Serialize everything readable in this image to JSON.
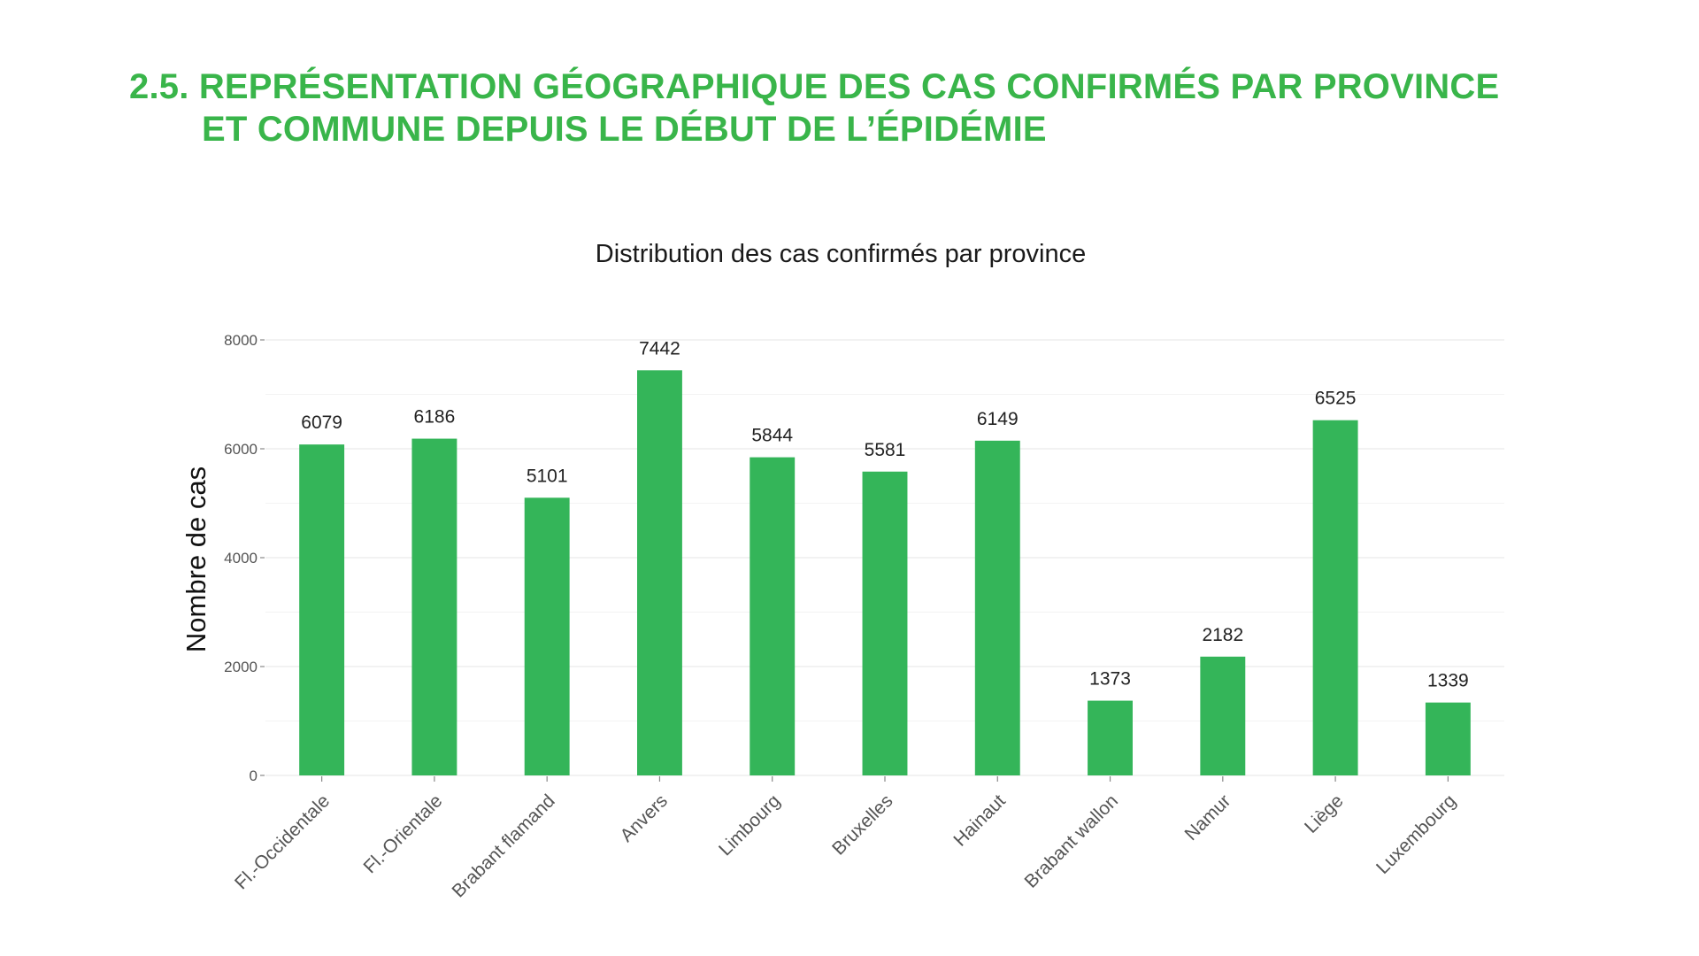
{
  "heading": {
    "line1": "2.5. REPRÉSENTATION GÉOGRAPHIQUE DES CAS CONFIRMÉS PAR PROVINCE",
    "line2": "ET COMMUNE DEPUIS LE DÉBUT DE L’ÉPIDÉMIE"
  },
  "colors": {
    "accent": "#39b54a",
    "bar": "#34b559"
  },
  "chart_data": {
    "type": "bar",
    "title": "Distribution des cas confirmés par province",
    "xlabel": "",
    "ylabel": "Nombre de cas",
    "categories": [
      "Fl.-Occidentale",
      "Fl.-Orientale",
      "Brabant flamand",
      "Anvers",
      "Limbourg",
      "Bruxelles",
      "Hainaut",
      "Brabant wallon",
      "Namur",
      "Liège",
      "Luxembourg"
    ],
    "values": [
      6079,
      6186,
      5101,
      7442,
      5844,
      5581,
      6149,
      1373,
      2182,
      6525,
      1339
    ],
    "ylim": [
      0,
      8000
    ],
    "yticks": [
      0,
      2000,
      4000,
      6000,
      8000
    ],
    "grid": true,
    "legend": "none"
  }
}
